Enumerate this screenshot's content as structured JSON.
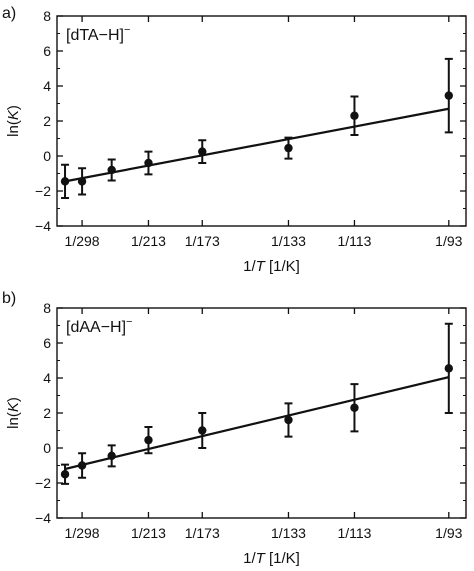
{
  "chart_data": [
    {
      "type": "scatter",
      "panel_label": "a)",
      "annotation": "[dTA−H]",
      "annotation_sup": "−",
      "ylabel": "ln(K)",
      "xlabel": "1/T [1/K]",
      "x_tick_values": [
        0.003356,
        0.004695,
        0.00578,
        0.007519,
        0.00885,
        0.010753
      ],
      "x_tick_labels": [
        "1/298",
        "1/213",
        "1/173",
        "1/133",
        "1/113",
        "1/93"
      ],
      "xlim": [
        0.00285,
        0.0111
      ],
      "ylim": [
        -4,
        8
      ],
      "y_ticks": [
        -4,
        -2,
        0,
        2,
        4,
        6,
        8
      ],
      "points": [
        {
          "x": 0.003012,
          "y": -1.45,
          "err": 0.95
        },
        {
          "x": 0.003356,
          "y": -1.45,
          "err": 0.75
        },
        {
          "x": 0.003953,
          "y": -0.8,
          "err": 0.6
        },
        {
          "x": 0.004695,
          "y": -0.4,
          "err": 0.65
        },
        {
          "x": 0.00578,
          "y": 0.25,
          "err": 0.65
        },
        {
          "x": 0.007519,
          "y": 0.45,
          "err": 0.6
        },
        {
          "x": 0.00885,
          "y": 2.3,
          "err": 1.1
        },
        {
          "x": 0.010753,
          "y": 3.45,
          "err": 2.1
        }
      ],
      "fit_line": {
        "x": [
          0.003012,
          0.010753
        ],
        "y": [
          -1.45,
          2.7
        ]
      }
    },
    {
      "type": "scatter",
      "panel_label": "b)",
      "annotation": "[dAA−H]",
      "annotation_sup": "−",
      "ylabel": "ln(K)",
      "xlabel": "1/T [1/K]",
      "x_tick_values": [
        0.003356,
        0.004695,
        0.00578,
        0.007519,
        0.00885,
        0.010753
      ],
      "x_tick_labels": [
        "1/298",
        "1/213",
        "1/173",
        "1/133",
        "1/113",
        "1/93"
      ],
      "xlim": [
        0.00285,
        0.0111
      ],
      "ylim": [
        -4,
        8
      ],
      "y_ticks": [
        -4,
        -2,
        0,
        2,
        4,
        6,
        8
      ],
      "points": [
        {
          "x": 0.003012,
          "y": -1.5,
          "err": 0.55
        },
        {
          "x": 0.003356,
          "y": -1.0,
          "err": 0.7
        },
        {
          "x": 0.003953,
          "y": -0.45,
          "err": 0.6
        },
        {
          "x": 0.004695,
          "y": 0.45,
          "err": 0.75
        },
        {
          "x": 0.00578,
          "y": 1.0,
          "err": 1.0
        },
        {
          "x": 0.007519,
          "y": 1.6,
          "err": 0.95
        },
        {
          "x": 0.00885,
          "y": 2.3,
          "err": 1.35
        },
        {
          "x": 0.010753,
          "y": 4.55,
          "err": 2.55
        }
      ],
      "fit_line": {
        "x": [
          0.003012,
          0.010753
        ],
        "y": [
          -1.2,
          4.05
        ]
      }
    }
  ]
}
